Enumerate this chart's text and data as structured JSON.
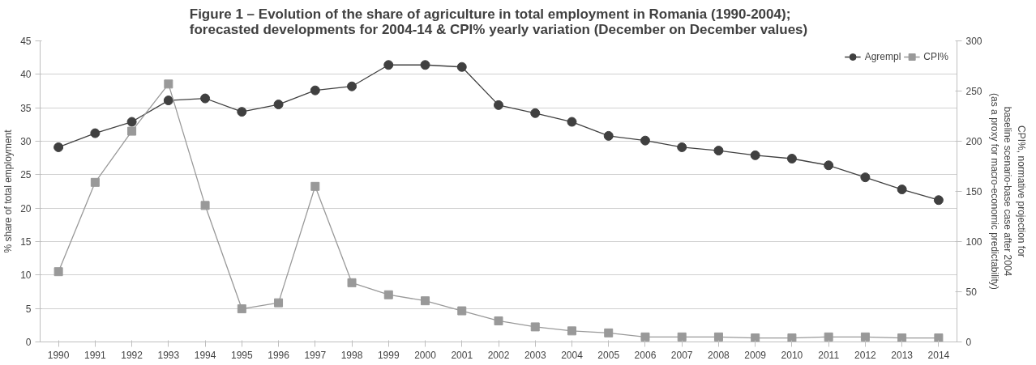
{
  "chart_data": {
    "type": "line",
    "title": "Figure 1 – Evolution of the share of agriculture in total employment in Romania (1990-2004);\nforecasted developments for 2004-14 & CPI% yearly variation (December on December values)",
    "ylabel": "% share of total employment",
    "y2label": "CPI%, normative projection for\nbaseline scenario-base case after 2004\n(as a proxy for macro-economic predictability)",
    "categories": [
      "1990",
      "1991",
      "1992",
      "1993",
      "1994",
      "1995",
      "1996",
      "1997",
      "1998",
      "1999",
      "2000",
      "2001",
      "2002",
      "2003",
      "2004",
      "2005",
      "2006",
      "2007",
      "2008",
      "2009",
      "2010",
      "2011",
      "2012",
      "2013",
      "2014"
    ],
    "series": [
      {
        "name": "Agrempl",
        "color": "#404040",
        "marker": "circle",
        "values": [
          29.1,
          31.2,
          32.9,
          36.1,
          36.4,
          34.4,
          35.5,
          37.6,
          38.2,
          41.4,
          41.4,
          41.1,
          35.4,
          34.2,
          32.9,
          30.8,
          30.1,
          29.1,
          28.6,
          27.9,
          27.4,
          26.4,
          24.6,
          22.8,
          21.2
        ]
      },
      {
        "name": "CPI%",
        "color": "#999999",
        "marker": "square",
        "axis": "y2",
        "values": [
          70,
          159,
          210,
          257,
          136,
          33,
          39,
          155,
          59,
          47,
          41,
          31,
          21,
          15,
          11,
          9,
          5,
          5,
          5,
          4,
          4,
          5,
          5,
          4,
          4
        ]
      }
    ],
    "ylim": [
      0,
      45
    ],
    "yticks": [
      0,
      5,
      10,
      15,
      20,
      25,
      30,
      35,
      40,
      45
    ],
    "y2lim": [
      0,
      300
    ],
    "y2ticks": [
      0,
      50,
      100,
      150,
      200,
      250,
      300
    ],
    "grid": "y",
    "legend": "top right",
    "line_style": "solid"
  }
}
